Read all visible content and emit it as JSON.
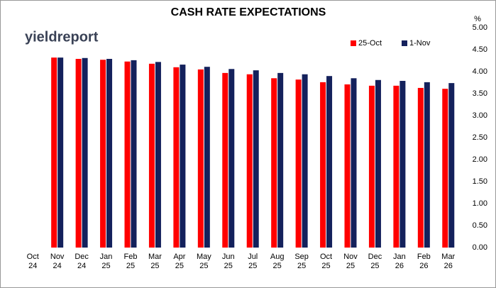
{
  "chart_data": {
    "type": "bar",
    "title": "CASH RATE EXPECTATIONS",
    "logo": "yieldreport",
    "ylabel": "%",
    "categories": [
      "Oct 24",
      "Nov 24",
      "Dec 24",
      "Jan 25",
      "Feb 25",
      "Mar 25",
      "Apr 25",
      "May 25",
      "Jun 25",
      "Jul 25",
      "Aug 25",
      "Sep 25",
      "Oct 25",
      "Nov 25",
      "Dec 25",
      "Jan 26",
      "Feb 26",
      "Mar 26"
    ],
    "series": [
      {
        "name": "25-Oct",
        "color": "#ff0000",
        "values": [
          null,
          4.32,
          4.29,
          4.27,
          4.23,
          4.18,
          4.1,
          4.05,
          3.97,
          3.94,
          3.85,
          3.82,
          3.76,
          3.71,
          3.68,
          3.68,
          3.63,
          3.61
        ]
      },
      {
        "name": "1-Nov",
        "color": "#14215c",
        "values": [
          null,
          4.32,
          4.31,
          4.29,
          4.26,
          4.22,
          4.16,
          4.11,
          4.06,
          4.03,
          3.97,
          3.94,
          3.9,
          3.85,
          3.81,
          3.79,
          3.76,
          3.74
        ]
      }
    ],
    "ylim": [
      0,
      5
    ],
    "yticks": [
      {
        "value": 0,
        "label": "0.00"
      },
      {
        "value": 0.5,
        "label": "0.50"
      },
      {
        "value": 1,
        "label": "1.00"
      },
      {
        "value": 1.5,
        "label": "1.50"
      },
      {
        "value": 2,
        "label": "2.00"
      },
      {
        "value": 2.5,
        "label": "2.50"
      },
      {
        "value": 3,
        "label": "3.00"
      },
      {
        "value": 3.5,
        "label": "3.50"
      },
      {
        "value": 4,
        "label": "4.00"
      },
      {
        "value": 4.5,
        "label": "4.50"
      },
      {
        "value": 5,
        "label": "5.00"
      }
    ],
    "y_axis_side": "right",
    "legend": "top-right",
    "grid": false
  }
}
